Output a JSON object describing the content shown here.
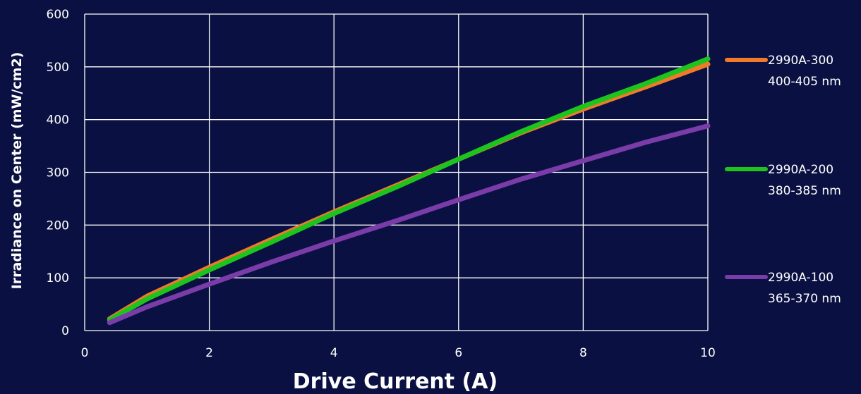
{
  "colors": {
    "background": "#0a1142",
    "grid": "#ffffff",
    "text": "#ffffff"
  },
  "chart_data": {
    "type": "line",
    "xlabel": "Drive Current (A)",
    "ylabel": "Irradiance on Center (mW/cm2)",
    "xlim": [
      0,
      10
    ],
    "ylim": [
      0,
      600
    ],
    "xticks": [
      0,
      2,
      4,
      6,
      8,
      10
    ],
    "yticks": [
      0,
      100,
      200,
      300,
      400,
      500,
      600
    ],
    "grid": true,
    "legend_position": "right",
    "series": [
      {
        "name": "2990A-300",
        "subtitle": "400-405 nm",
        "color": "#f07a2a",
        "x": [
          0.4,
          1,
          2,
          3,
          4,
          5,
          6,
          7,
          8,
          9,
          10
        ],
        "y": [
          22,
          65,
          120,
          173,
          225,
          275,
          325,
          375,
          420,
          462,
          505
        ]
      },
      {
        "name": "2990A-200",
        "subtitle": "380-385 nm",
        "color": "#1dc41d",
        "x": [
          0.4,
          1,
          2,
          3,
          4,
          5,
          6,
          7,
          8,
          9,
          10
        ],
        "y": [
          20,
          60,
          115,
          168,
          222,
          272,
          325,
          377,
          425,
          468,
          515
        ]
      },
      {
        "name": "2990A-100",
        "subtitle": "365-370 nm",
        "color": "#7a3ca8",
        "x": [
          0.4,
          1,
          2,
          3,
          4,
          5,
          6,
          7,
          8,
          9,
          10
        ],
        "y": [
          15,
          45,
          88,
          130,
          170,
          208,
          248,
          287,
          322,
          357,
          388
        ]
      }
    ]
  }
}
